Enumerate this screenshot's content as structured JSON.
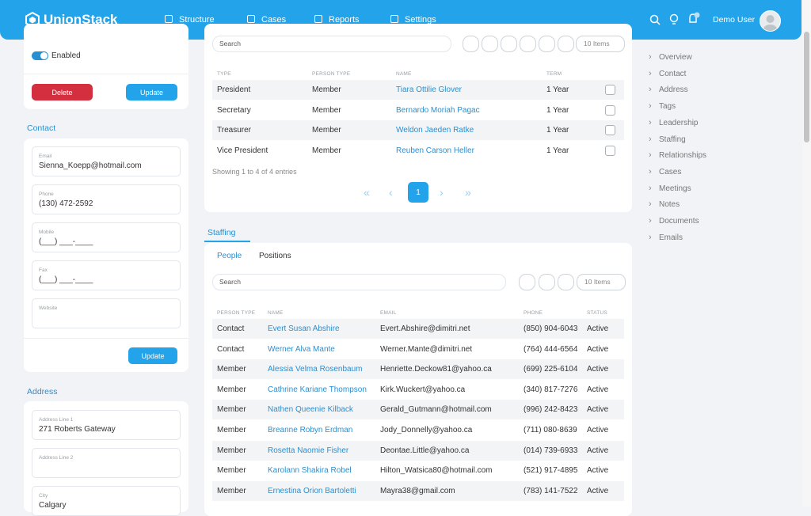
{
  "header": {
    "brand": "UnionStack",
    "nav": [
      "Structure",
      "Cases",
      "Reports",
      "Settings"
    ],
    "user": "Demo User"
  },
  "status_card": {
    "toggle_label": "Enabled",
    "delete": "Delete",
    "update": "Update"
  },
  "contact": {
    "title": "Contact",
    "update": "Update",
    "fields": [
      {
        "label": "Email",
        "value": "Sienna_Koepp@hotmail.com"
      },
      {
        "label": "Phone",
        "value": "(130) 472-2592"
      },
      {
        "label": "Mobile",
        "value": "(___) ___-____"
      },
      {
        "label": "Fax",
        "value": "(___) ___-____"
      },
      {
        "label": "Website"
      }
    ]
  },
  "address": {
    "title": "Address",
    "fields": [
      {
        "label": "Address Line 1",
        "value": "271 Roberts Gateway"
      },
      {
        "label": "Address Line 2"
      },
      {
        "label": "City",
        "value": "Calgary"
      }
    ]
  },
  "leadership": {
    "search": "Search",
    "page_size": "10 Items",
    "columns": [
      "TYPE",
      "PERSON TYPE",
      "NAME",
      "TERM"
    ],
    "rows": [
      [
        "President",
        "Member",
        "Tiara Ottilie Glover",
        "1 Year"
      ],
      [
        "Secretary",
        "Member",
        "Bernardo Moriah Pagac",
        "1 Year"
      ],
      [
        "Treasurer",
        "Member",
        "Weldon Jaeden Ratke",
        "1 Year"
      ],
      [
        "Vice President",
        "Member",
        "Reuben Carson Heller",
        "1 Year"
      ]
    ],
    "summary": "Showing 1 to 4 of 4 entries",
    "page": 1
  },
  "staffing": {
    "title": "Staffing",
    "tabs": [
      "People",
      "Positions"
    ],
    "search": "Search",
    "page_size": "10 Items",
    "columns": [
      "PERSON TYPE",
      "NAME",
      "EMAIL",
      "PHONE",
      "STATUS"
    ],
    "rows": [
      [
        "Contact",
        "Evert Susan Abshire",
        "Evert.Abshire@dimitri.net",
        "(850) 904-6043",
        "Active"
      ],
      [
        "Contact",
        "Werner Alva Mante",
        "Werner.Mante@dimitri.net",
        "(764) 444-6564",
        "Active"
      ],
      [
        "Member",
        "Alessia Velma Rosenbaum",
        "Henriette.Deckow81@yahoo.ca",
        "(699) 225-6104",
        "Active"
      ],
      [
        "Member",
        "Cathrine Kariane Thompson",
        "Kirk.Wuckert@yahoo.ca",
        "(340) 817-7276",
        "Active"
      ],
      [
        "Member",
        "Nathen Queenie Kilback",
        "Gerald_Gutmann@hotmail.com",
        "(996) 242-8423",
        "Active"
      ],
      [
        "Member",
        "Breanne Robyn Erdman",
        "Jody_Donnelly@yahoo.ca",
        "(711) 080-8639",
        "Active"
      ],
      [
        "Member",
        "Rosetta Naomie Fisher",
        "Deontae.Little@yahoo.ca",
        "(014) 739-6933",
        "Active"
      ],
      [
        "Member",
        "Karolann Shakira Robel",
        "Hilton_Watsica80@hotmail.com",
        "(521) 917-4895",
        "Active"
      ],
      [
        "Member",
        "Ernestina Orion Bartoletti",
        "Mayra38@gmail.com",
        "(783) 141-7522",
        "Active"
      ]
    ]
  },
  "sidebar": [
    "Overview",
    "Contact",
    "Address",
    "Tags",
    "Leadership",
    "Staffing",
    "Relationships",
    "Cases",
    "Meetings",
    "Notes",
    "Documents",
    "Emails"
  ]
}
